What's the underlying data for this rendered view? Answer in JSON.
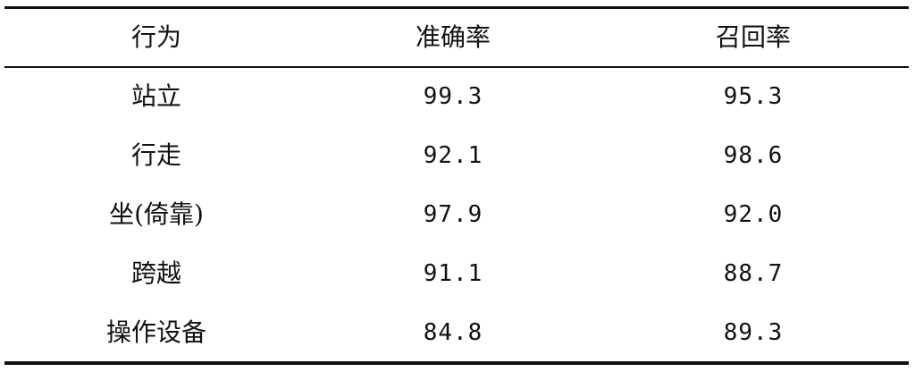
{
  "table": {
    "headers": [
      "行为",
      "准确率",
      "召回率"
    ],
    "rows": [
      [
        "站立",
        "99.3",
        "95.3"
      ],
      [
        "行走",
        "92.1",
        "98.6"
      ],
      [
        "坐(倚靠)",
        "97.9",
        "92.0"
      ],
      [
        "跨越",
        "91.1",
        "88.7"
      ],
      [
        "操作设备",
        "84.8",
        "89.3"
      ]
    ]
  }
}
